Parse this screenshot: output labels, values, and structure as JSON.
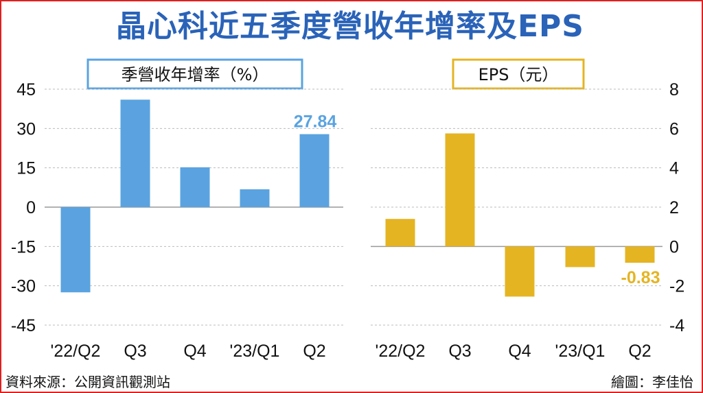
{
  "title": "晶心科近五季度營收年增率及EPS",
  "source": "資料來源：公開資訊觀測站",
  "credit": "繪圖：李佳怡",
  "colors": {
    "title": "#2a63b8",
    "revenue": "#5aa3e0",
    "eps": "#e5b422",
    "border": "#e02020"
  },
  "chart_data": [
    {
      "type": "bar",
      "label": "季營收年增率（%）",
      "categories": [
        "'22/Q2",
        "Q3",
        "Q4",
        "'23/Q1",
        "Q2"
      ],
      "values": [
        -32.5,
        41,
        15.2,
        6.8,
        27.84
      ],
      "ylim": [
        -45,
        45
      ],
      "yticks": [
        45,
        30,
        15,
        0,
        -15,
        -30,
        -45
      ],
      "annotation": {
        "index": 4,
        "text": "27.84"
      },
      "grid": true
    },
    {
      "type": "bar",
      "label": "EPS（元）",
      "categories": [
        "'22/Q2",
        "Q3",
        "Q4",
        "'23/Q1",
        "Q2"
      ],
      "values": [
        1.4,
        5.75,
        -2.55,
        -1.05,
        -0.83
      ],
      "ylim": [
        -4,
        8
      ],
      "yticks": [
        8,
        6,
        4,
        2,
        0,
        -2,
        -4
      ],
      "annotation": {
        "index": 4,
        "text": "-0.83"
      },
      "grid": true
    }
  ]
}
